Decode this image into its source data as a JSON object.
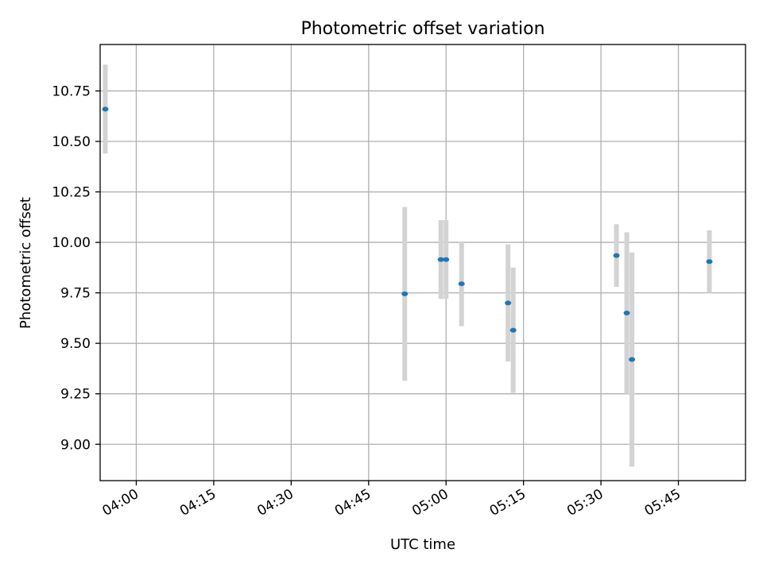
{
  "chart_data": {
    "type": "scatter",
    "title": "Photometric offset variation",
    "xlabel": "UTC time",
    "ylabel": "Photometric offset",
    "grid": true,
    "x_ticks": [
      "04:00",
      "04:15",
      "04:30",
      "04:45",
      "05:00",
      "05:15",
      "05:30",
      "05:45"
    ],
    "y_ticks": [
      "9.00",
      "9.25",
      "9.50",
      "9.75",
      "10.00",
      "10.25",
      "10.50",
      "10.75"
    ],
    "xlim": [
      "03:53",
      "05:58"
    ],
    "ylim": [
      8.82,
      10.98
    ],
    "colors": {
      "point": "#1f77b4",
      "errorbar": "#d3d3d3",
      "grid": "#b0b0b0"
    },
    "points": [
      {
        "x": "03:54",
        "y": 10.66,
        "yerr": 0.22
      },
      {
        "x": "04:52",
        "y": 9.745,
        "yerr": 0.43
      },
      {
        "x": "04:59",
        "y": 9.915,
        "yerr": 0.195
      },
      {
        "x": "05:00",
        "y": 9.915,
        "yerr": 0.195
      },
      {
        "x": "05:03",
        "y": 9.795,
        "yerr": 0.21
      },
      {
        "x": "05:12",
        "y": 9.7,
        "yerr": 0.29
      },
      {
        "x": "05:13",
        "y": 9.565,
        "yerr": 0.31
      },
      {
        "x": "05:33",
        "y": 9.935,
        "yerr": 0.155
      },
      {
        "x": "05:35",
        "y": 9.65,
        "yerr": 0.4
      },
      {
        "x": "05:36",
        "y": 9.42,
        "yerr": 0.53
      },
      {
        "x": "05:51",
        "y": 9.905,
        "yerr": 0.155
      }
    ]
  }
}
